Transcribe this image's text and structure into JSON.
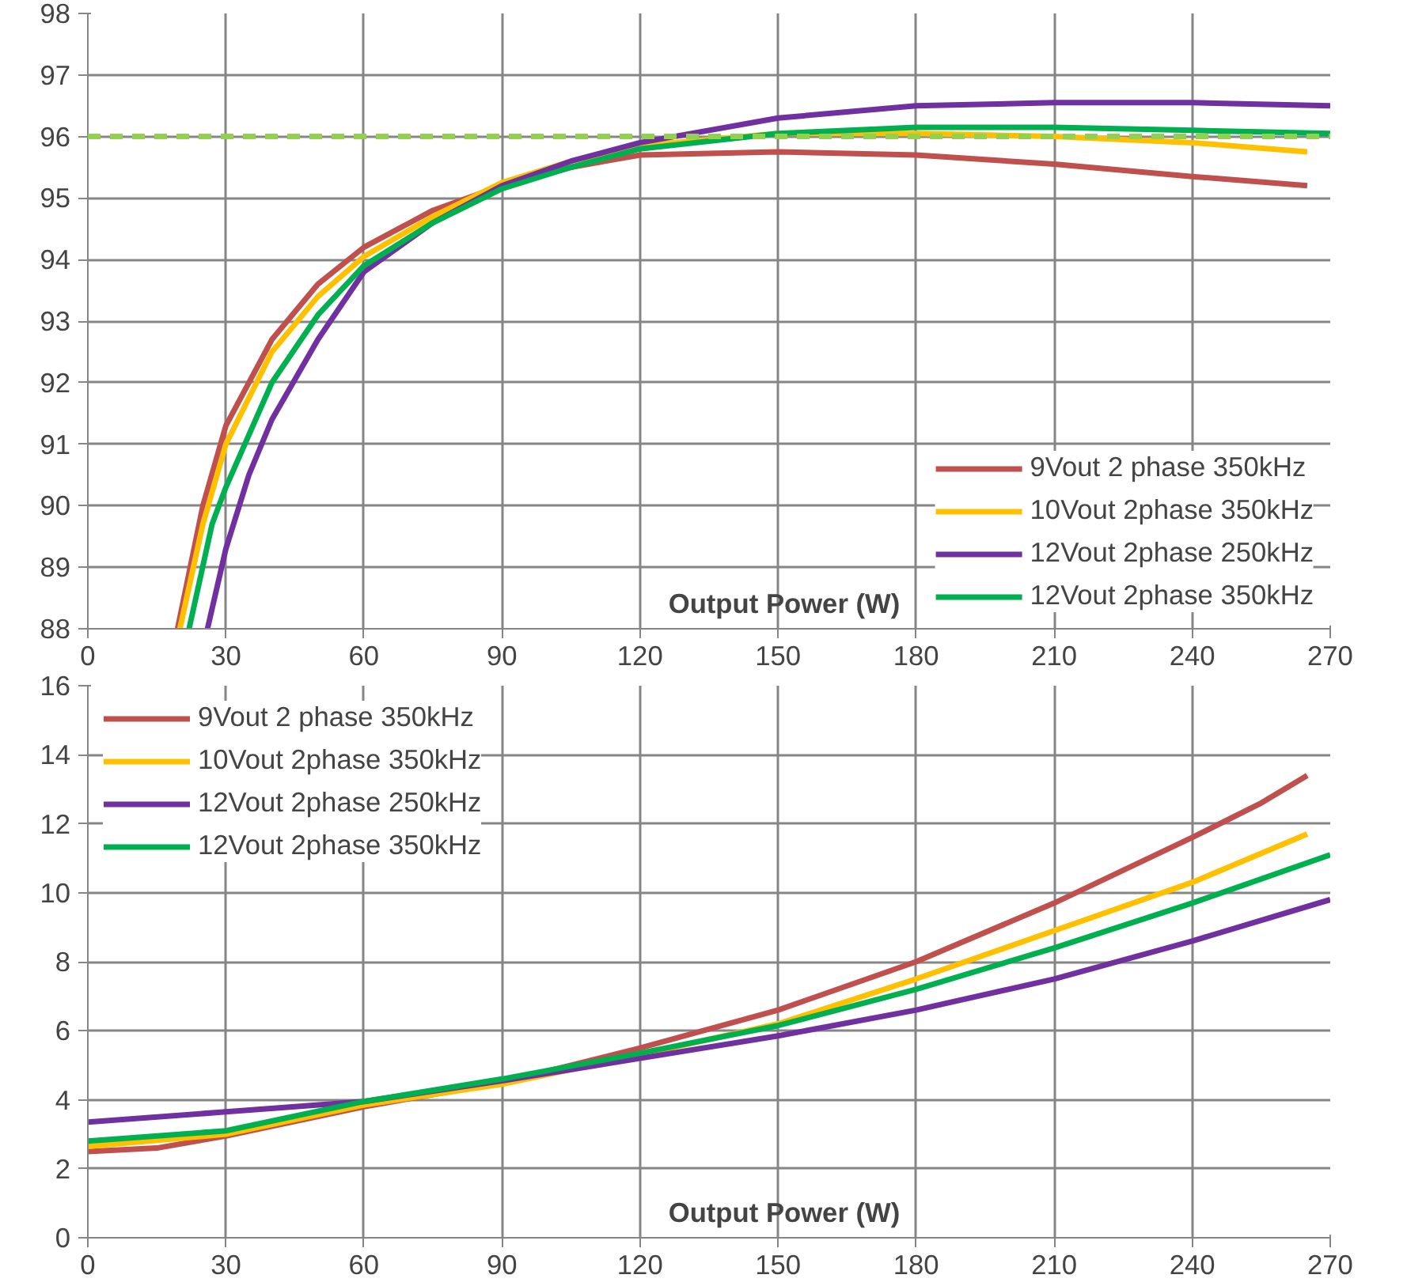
{
  "chart_data": [
    {
      "type": "line",
      "xlabel": "Output Power (W)",
      "xlim": [
        0,
        270
      ],
      "xticks": [
        0,
        30,
        60,
        90,
        120,
        150,
        180,
        210,
        240,
        270
      ],
      "ylim": [
        88,
        98
      ],
      "yticks": [
        88,
        89,
        90,
        91,
        92,
        93,
        94,
        95,
        96,
        97,
        98
      ],
      "grid": true,
      "legend": "bottom right",
      "line_style": "solid",
      "marker": "none",
      "ref_lines": [
        {
          "axis": "y",
          "value": 96,
          "color": "#92d050",
          "line_style": "dashed"
        }
      ],
      "series": [
        {
          "name": "9Vout 2 phase 350kHz",
          "color": "#c0504d",
          "x": [
            19.5,
            25,
            30,
            40,
            50,
            60,
            75,
            90,
            105,
            120,
            150,
            180,
            210,
            240,
            265
          ],
          "values": [
            88,
            90,
            91.3,
            92.7,
            93.6,
            94.2,
            94.8,
            95.2,
            95.5,
            95.7,
            95.75,
            95.7,
            95.55,
            95.35,
            95.2
          ]
        },
        {
          "name": "10Vout 2phase 350kHz",
          "color": "#ffc000",
          "x": [
            20,
            25,
            30,
            40,
            50,
            60,
            75,
            90,
            105,
            120,
            150,
            180,
            210,
            240,
            265
          ],
          "values": [
            88,
            89.7,
            91,
            92.5,
            93.4,
            94.05,
            94.7,
            95.25,
            95.6,
            95.85,
            96.05,
            96.05,
            96,
            95.9,
            95.75
          ]
        },
        {
          "name": "12Vout 2phase 250kHz",
          "color": "#7030a0",
          "x": [
            26,
            30,
            35,
            40,
            50,
            60,
            75,
            90,
            105,
            120,
            150,
            180,
            210,
            240,
            270
          ],
          "values": [
            88,
            89.3,
            90.5,
            91.4,
            92.7,
            93.8,
            94.6,
            95.2,
            95.6,
            95.9,
            96.3,
            96.5,
            96.55,
            96.55,
            96.5
          ]
        },
        {
          "name": "12Vout 2phase 350kHz",
          "color": "#00b050",
          "x": [
            22,
            27,
            30,
            40,
            50,
            60,
            75,
            90,
            105,
            120,
            150,
            180,
            210,
            240,
            270
          ],
          "values": [
            88,
            89.7,
            90.3,
            92,
            93.1,
            93.9,
            94.6,
            95.15,
            95.5,
            95.8,
            96.05,
            96.15,
            96.15,
            96.1,
            96.05
          ]
        }
      ]
    },
    {
      "type": "line",
      "xlabel": "Output Power (W)",
      "xlim": [
        0,
        270
      ],
      "xticks": [
        0,
        30,
        60,
        90,
        120,
        150,
        180,
        210,
        240,
        270
      ],
      "ylim": [
        0,
        16
      ],
      "yticks": [
        0,
        2,
        4,
        6,
        8,
        10,
        12,
        14,
        16
      ],
      "grid": true,
      "legend": "top left",
      "line_style": "solid",
      "marker": "none",
      "series": [
        {
          "name": "9Vout 2 phase 350kHz",
          "color": "#c0504d",
          "x": [
            0,
            15,
            30,
            60,
            90,
            120,
            150,
            180,
            210,
            240,
            255,
            265
          ],
          "values": [
            2.5,
            2.6,
            2.95,
            3.8,
            4.5,
            5.5,
            6.6,
            8,
            9.7,
            11.6,
            12.6,
            13.4
          ]
        },
        {
          "name": "10Vout 2phase 350kHz",
          "color": "#ffc000",
          "x": [
            0,
            30,
            60,
            90,
            120,
            150,
            180,
            210,
            240,
            265
          ],
          "values": [
            2.65,
            3,
            3.85,
            4.45,
            5.3,
            6.2,
            7.5,
            8.9,
            10.3,
            11.7
          ]
        },
        {
          "name": "12Vout 2phase 250kHz",
          "color": "#7030a0",
          "x": [
            0,
            30,
            60,
            90,
            120,
            150,
            180,
            210,
            240,
            270
          ],
          "values": [
            3.35,
            3.65,
            3.95,
            4.55,
            5.2,
            5.85,
            6.6,
            7.5,
            8.6,
            9.8
          ]
        },
        {
          "name": "12Vout 2phase 350kHz",
          "color": "#00b050",
          "x": [
            0,
            30,
            60,
            90,
            120,
            150,
            180,
            210,
            240,
            270
          ],
          "values": [
            2.8,
            3.1,
            3.95,
            4.6,
            5.35,
            6.15,
            7.2,
            8.4,
            9.7,
            11.1
          ]
        }
      ]
    }
  ]
}
